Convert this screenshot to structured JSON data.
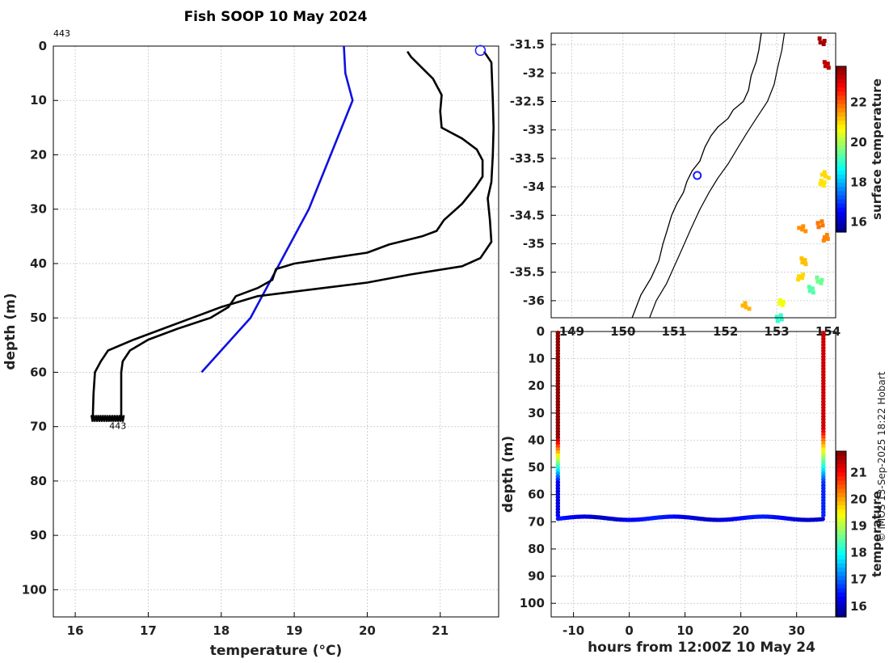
{
  "figure": {
    "title": "Fish SOOP 10 May 2024",
    "credit": "© IMOS 13-Sep-2025 18:22 Hobart"
  },
  "chart_data": [
    {
      "type": "line",
      "panel": "profiles",
      "xlabel": "temperature (°C)",
      "ylabel": "depth (m)",
      "xlim": [
        15.7,
        21.8
      ],
      "ylim": [
        105,
        0
      ],
      "xticks": [
        16,
        17,
        18,
        19,
        20,
        21
      ],
      "yticks": [
        0,
        10,
        20,
        30,
        40,
        50,
        60,
        70,
        80,
        90,
        100
      ],
      "grid": true,
      "annotations": [
        {
          "text": "443",
          "x": 15.7,
          "y": -2
        },
        {
          "text": "443",
          "x": 16.4,
          "y": 70
        }
      ],
      "marker": {
        "x": 21.55,
        "y": 0.8,
        "color": "#1a1aff"
      },
      "series": [
        {
          "color": "#1010e0",
          "points": [
            [
              19.68,
              0
            ],
            [
              19.7,
              5
            ],
            [
              19.8,
              10
            ],
            [
              19.5,
              20
            ],
            [
              19.2,
              30
            ],
            [
              18.8,
              40
            ],
            [
              18.4,
              50
            ],
            [
              17.73,
              60
            ]
          ]
        },
        {
          "color": "#000000",
          "points": [
            [
              21.6,
              1
            ],
            [
              21.7,
              3
            ],
            [
              21.72,
              10
            ],
            [
              21.73,
              15
            ],
            [
              21.72,
              20
            ],
            [
              21.7,
              25
            ],
            [
              21.65,
              28
            ],
            [
              21.68,
              32
            ],
            [
              21.7,
              36
            ],
            [
              21.55,
              39
            ],
            [
              21.3,
              40.5
            ],
            [
              20.6,
              42
            ],
            [
              20.0,
              43.5
            ],
            [
              19.4,
              44.5
            ],
            [
              18.5,
              46
            ],
            [
              18.0,
              48
            ],
            [
              17.6,
              50
            ],
            [
              17.2,
              52
            ],
            [
              16.8,
              54
            ],
            [
              16.45,
              56
            ],
            [
              16.35,
              58
            ],
            [
              16.27,
              60
            ],
            [
              16.25,
              64
            ],
            [
              16.24,
              68.5
            ]
          ]
        },
        {
          "color": "#000000",
          "points": [
            [
              20.55,
              1
            ],
            [
              20.6,
              2
            ],
            [
              20.75,
              4
            ],
            [
              20.9,
              6
            ],
            [
              21.02,
              9
            ],
            [
              21.0,
              12
            ],
            [
              21.02,
              15
            ],
            [
              21.3,
              17
            ],
            [
              21.5,
              19
            ],
            [
              21.58,
              21
            ],
            [
              21.58,
              24
            ],
            [
              21.48,
              26
            ],
            [
              21.3,
              29
            ],
            [
              21.05,
              32
            ],
            [
              20.95,
              34
            ],
            [
              20.75,
              35
            ],
            [
              20.3,
              36.5
            ],
            [
              20.0,
              38
            ],
            [
              19.5,
              39
            ],
            [
              19.0,
              40
            ],
            [
              18.75,
              41
            ],
            [
              18.7,
              43
            ],
            [
              18.5,
              44.5
            ],
            [
              18.2,
              46
            ],
            [
              18.1,
              48
            ],
            [
              17.85,
              50
            ],
            [
              17.4,
              52
            ],
            [
              17.0,
              54
            ],
            [
              16.75,
              56
            ],
            [
              16.65,
              58
            ],
            [
              16.63,
              60
            ],
            [
              16.63,
              64
            ],
            [
              16.63,
              68.5
            ]
          ]
        }
      ]
    },
    {
      "type": "map",
      "panel": "surface-map",
      "xlim": [
        148.6,
        154.15
      ],
      "ylim": [
        -36.3,
        -31.3
      ],
      "xticks": [
        149,
        150,
        151,
        152,
        153,
        154
      ],
      "yticks": [
        -31.5,
        -32,
        -32.5,
        -33,
        -33.5,
        -34,
        -34.5,
        -35,
        -35.5,
        -36
      ],
      "grid": true,
      "ship_position": {
        "lon": 151.45,
        "lat": -33.8,
        "color": "#1a1aff"
      },
      "coastline": [
        [
          152.7,
          -31.3
        ],
        [
          152.65,
          -31.6
        ],
        [
          152.6,
          -31.8
        ],
        [
          152.5,
          -32.05
        ],
        [
          152.45,
          -32.3
        ],
        [
          152.35,
          -32.5
        ],
        [
          152.15,
          -32.65
        ],
        [
          152.05,
          -32.8
        ],
        [
          151.85,
          -32.95
        ],
        [
          151.72,
          -33.1
        ],
        [
          151.6,
          -33.3
        ],
        [
          151.5,
          -33.55
        ],
        [
          151.35,
          -33.72
        ],
        [
          151.25,
          -33.9
        ],
        [
          151.18,
          -34.1
        ],
        [
          151.05,
          -34.3
        ],
        [
          150.95,
          -34.5
        ],
        [
          150.85,
          -34.8
        ],
        [
          150.78,
          -35.0
        ],
        [
          150.7,
          -35.3
        ],
        [
          150.55,
          -35.6
        ],
        [
          150.35,
          -35.9
        ],
        [
          150.18,
          -36.3
        ]
      ],
      "isobath": [
        [
          153.15,
          -31.3
        ],
        [
          153.1,
          -31.6
        ],
        [
          153.02,
          -31.9
        ],
        [
          152.95,
          -32.2
        ],
        [
          152.82,
          -32.5
        ],
        [
          152.6,
          -32.8
        ],
        [
          152.42,
          -33.05
        ],
        [
          152.25,
          -33.3
        ],
        [
          152.05,
          -33.6
        ],
        [
          151.85,
          -33.85
        ],
        [
          151.68,
          -34.1
        ],
        [
          151.5,
          -34.4
        ],
        [
          151.32,
          -34.75
        ],
        [
          151.15,
          -35.1
        ],
        [
          151.0,
          -35.4
        ],
        [
          150.85,
          -35.7
        ],
        [
          150.65,
          -36.0
        ],
        [
          150.52,
          -36.3
        ]
      ],
      "sst_patches": [
        {
          "lon": 153.9,
          "lat": -31.45,
          "value": 23.5
        },
        {
          "lon": 153.95,
          "lat": -31.85,
          "value": 23.3
        },
        {
          "lon": 153.9,
          "lat": -33.95,
          "value": 20.9
        },
        {
          "lon": 153.95,
          "lat": -33.8,
          "value": 21.0
        },
        {
          "lon": 153.85,
          "lat": -34.65,
          "value": 21.8
        },
        {
          "lon": 153.5,
          "lat": -34.75,
          "value": 21.6
        },
        {
          "lon": 153.95,
          "lat": -34.9,
          "value": 21.7
        },
        {
          "lon": 153.55,
          "lat": -35.3,
          "value": 21.2
        },
        {
          "lon": 153.45,
          "lat": -35.6,
          "value": 21.0
        },
        {
          "lon": 153.85,
          "lat": -35.65,
          "value": 19.5
        },
        {
          "lon": 153.65,
          "lat": -35.8,
          "value": 19.3
        },
        {
          "lon": 153.1,
          "lat": -36.05,
          "value": 20.6
        },
        {
          "lon": 152.4,
          "lat": -36.1,
          "value": 21.3
        },
        {
          "lon": 153.05,
          "lat": -36.3,
          "value": 19.0
        }
      ],
      "colorbar": {
        "label": "surface temperature",
        "range": [
          15.5,
          23.8
        ],
        "ticks": [
          16,
          18,
          20,
          22
        ]
      }
    },
    {
      "type": "scatter",
      "panel": "depth-time",
      "xlabel": "hours from 12:00Z 10 May 24",
      "ylabel": "depth (m)",
      "xlim": [
        -14,
        37
      ],
      "ylim": [
        105,
        0
      ],
      "xticks": [
        -10,
        0,
        10,
        20,
        30
      ],
      "yticks": [
        0,
        10,
        20,
        30,
        40,
        50,
        60,
        70,
        80,
        90,
        100
      ],
      "grid": true,
      "casts": [
        {
          "x": -12.8,
          "surface_temp": 21.7,
          "bottom_temp": 16.2,
          "thermocline_top": 39,
          "thermocline_bottom": 56,
          "bottom_depth": 68.5
        },
        {
          "x": 34.8,
          "surface_temp": 21.3,
          "bottom_temp": 16.6,
          "thermocline_top": 36,
          "thermocline_bottom": 56,
          "bottom_depth": 68.5
        }
      ],
      "bottom_track": {
        "x_start": -12.8,
        "x_end": 34.8,
        "mean_depth": 68.7,
        "amplitude": 0.6,
        "period_hours": 16,
        "temp": 16.3
      },
      "colorbar": {
        "label": "temperature",
        "range": [
          15.6,
          21.8
        ],
        "ticks": [
          16,
          17,
          18,
          19,
          20,
          21
        ]
      }
    }
  ]
}
